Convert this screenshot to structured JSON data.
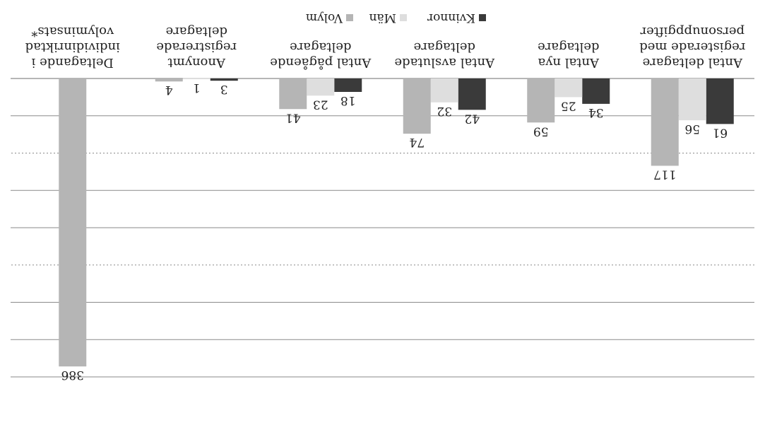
{
  "chart_data": {
    "type": "bar",
    "categories": [
      [
        "Antal  deltagare",
        "registerade med",
        "personuppgifter"
      ],
      [
        "Antal nya",
        "deltagare"
      ],
      [
        "Antal avslutade",
        "deltagare"
      ],
      [
        "Antal pågående",
        "deltagare"
      ],
      [
        "Anonymt",
        "registrerade",
        "deltagare"
      ],
      [
        "Deltagande i",
        "individinriktad",
        "volyminsats*"
      ]
    ],
    "series": [
      {
        "name": "Kvinnor",
        "values": [
          61,
          34,
          42,
          18,
          3,
          null
        ]
      },
      {
        "name": "Män",
        "values": [
          56,
          25,
          32,
          23,
          1,
          null
        ]
      },
      {
        "name": "Volym",
        "values": [
          117,
          59,
          74,
          41,
          4,
          386
        ]
      }
    ],
    "ylim": [
      0,
      400
    ],
    "grid": true,
    "legend_position": "bottom",
    "rotation": "upside-down",
    "colors": {
      "Kvinnor": "#3a3a3a",
      "Män": "#dedede",
      "Volym": "#b5b5b5",
      "grid": "#8a8a8a"
    }
  }
}
